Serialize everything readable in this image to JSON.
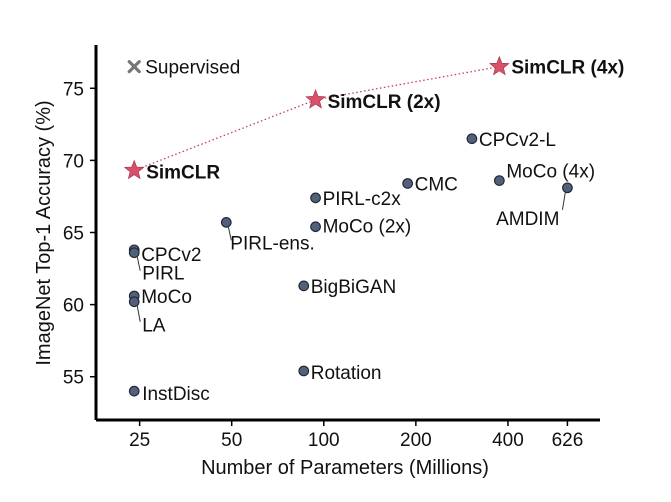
{
  "chart_data": {
    "type": "scatter",
    "title": "",
    "xlabel": "Number of Parameters (Millions)",
    "ylabel": "ImageNet Top-1 Accuracy (%)",
    "x_scale": "log",
    "xlim": [
      18,
      800
    ],
    "ylim": [
      52,
      78
    ],
    "x_ticks": [
      25,
      50,
      100,
      200,
      400,
      626
    ],
    "y_ticks": [
      55,
      60,
      65,
      70,
      75
    ],
    "grid": false,
    "colors": {
      "point": "#52617a",
      "point_edge": "#1b2433",
      "simclr": "#d9506a",
      "supervised": "#777777",
      "trend_line": "#c0405a"
    },
    "points": [
      {
        "label": "Supervised",
        "x": 24,
        "y": 76.5,
        "marker": "x-icon"
      },
      {
        "label": "SimCLR",
        "x": 24,
        "y": 69.3,
        "marker": "star-icon",
        "bold": true
      },
      {
        "label": "SimCLR (2x)",
        "x": 94,
        "y": 74.2,
        "marker": "star-icon",
        "bold": true
      },
      {
        "label": "SimCLR (4x)",
        "x": 375,
        "y": 76.5,
        "marker": "star-icon",
        "bold": true
      },
      {
        "label": "CPCv2",
        "x": 24,
        "y": 63.8,
        "marker": "circle"
      },
      {
        "label": "PIRL",
        "x": 24,
        "y": 63.6,
        "marker": "circle"
      },
      {
        "label": "MoCo",
        "x": 24,
        "y": 60.6,
        "marker": "circle"
      },
      {
        "label": "LA",
        "x": 24,
        "y": 60.2,
        "marker": "circle"
      },
      {
        "label": "InstDisc",
        "x": 24,
        "y": 54.0,
        "marker": "circle"
      },
      {
        "label": "PIRL-ens.",
        "x": 48,
        "y": 65.7,
        "marker": "circle"
      },
      {
        "label": "PIRL-c2x",
        "x": 94,
        "y": 67.4,
        "marker": "circle"
      },
      {
        "label": "MoCo (2x)",
        "x": 94,
        "y": 65.4,
        "marker": "circle"
      },
      {
        "label": "BigBiGAN",
        "x": 86,
        "y": 61.3,
        "marker": "circle"
      },
      {
        "label": "Rotation",
        "x": 86,
        "y": 55.4,
        "marker": "circle"
      },
      {
        "label": "CMC",
        "x": 188,
        "y": 68.4,
        "marker": "circle"
      },
      {
        "label": "CPCv2-L",
        "x": 305,
        "y": 71.5,
        "marker": "circle"
      },
      {
        "label": "MoCo (4x)",
        "x": 375,
        "y": 68.6,
        "marker": "circle"
      },
      {
        "label": "AMDIM",
        "x": 626,
        "y": 68.1,
        "marker": "circle"
      }
    ],
    "trend_line": [
      "SimCLR",
      "SimCLR (2x)",
      "SimCLR (4x)"
    ]
  }
}
